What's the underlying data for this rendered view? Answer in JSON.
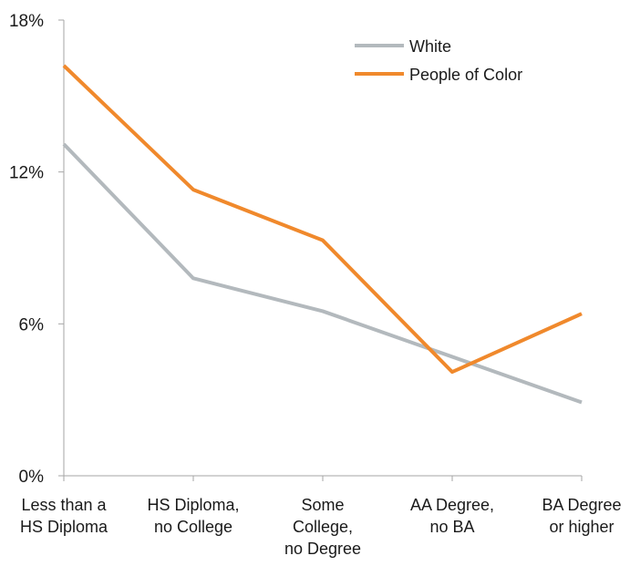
{
  "chart_data": {
    "type": "line",
    "title": "",
    "xlabel": "",
    "ylabel": "",
    "categories": [
      [
        "Less than a",
        "HS Diploma"
      ],
      [
        "HS Diploma,",
        "no College"
      ],
      [
        "Some",
        "College,",
        "no Degree"
      ],
      [
        "AA Degree,",
        "no BA"
      ],
      [
        "BA Degree",
        "or higher"
      ]
    ],
    "ylim": [
      0,
      18
    ],
    "yticks": [
      0,
      6,
      12,
      18
    ],
    "ytick_labels": [
      "0%",
      "6%",
      "12%",
      "18%"
    ],
    "grid": false,
    "legend_position": "top-right",
    "series": [
      {
        "name": "White",
        "color": "#b3b9bd",
        "values": [
          13.1,
          7.8,
          6.5,
          4.7,
          2.9
        ]
      },
      {
        "name": "People of Color",
        "color": "#f0892c",
        "values": [
          16.2,
          11.3,
          9.3,
          4.1,
          6.4
        ]
      }
    ]
  }
}
